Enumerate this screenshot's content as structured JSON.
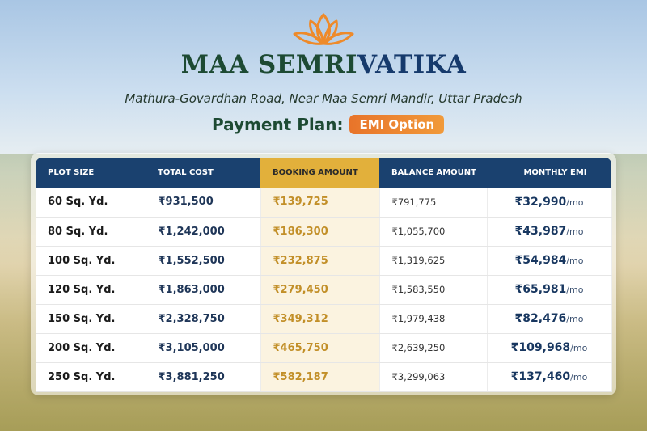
{
  "brand": {
    "name_part1": "MAA SEMRI",
    "name_part2": "VATIKA",
    "logo": "lotus-icon",
    "color_green": "#1d4a33",
    "color_blue": "#163a6c",
    "accent": "#e8742a"
  },
  "location": "Mathura-Govardhan Road, Near Maa Semri Mandir, Uttar Pradesh",
  "plan": {
    "label": "Payment Plan:",
    "badge": "EMI Option"
  },
  "table": {
    "headers": [
      "PLOT SIZE",
      "TOTAL COST",
      "BOOKING AMOUNT",
      "BALANCE AMOUNT",
      "MONTHLY EMI"
    ],
    "emi_suffix": "/mo",
    "rows": [
      {
        "size": "60 Sq. Yd.",
        "total": "₹931,500",
        "booking": "₹139,725",
        "balance": "₹791,775",
        "emi": "₹32,990"
      },
      {
        "size": "80 Sq. Yd.",
        "total": "₹1,242,000",
        "booking": "₹186,300",
        "balance": "₹1,055,700",
        "emi": "₹43,987"
      },
      {
        "size": "100 Sq. Yd.",
        "total": "₹1,552,500",
        "booking": "₹232,875",
        "balance": "₹1,319,625",
        "emi": "₹54,984"
      },
      {
        "size": "120 Sq. Yd.",
        "total": "₹1,863,000",
        "booking": "₹279,450",
        "balance": "₹1,583,550",
        "emi": "₹65,981"
      },
      {
        "size": "150 Sq. Yd.",
        "total": "₹2,328,750",
        "booking": "₹349,312",
        "balance": "₹1,979,438",
        "emi": "₹82,476"
      },
      {
        "size": "200 Sq. Yd.",
        "total": "₹3,105,000",
        "booking": "₹465,750",
        "balance": "₹2,639,250",
        "emi": "₹109,968"
      },
      {
        "size": "250 Sq. Yd.",
        "total": "₹3,881,250",
        "booking": "₹582,187",
        "balance": "₹3,299,063",
        "emi": "₹137,460"
      }
    ]
  }
}
